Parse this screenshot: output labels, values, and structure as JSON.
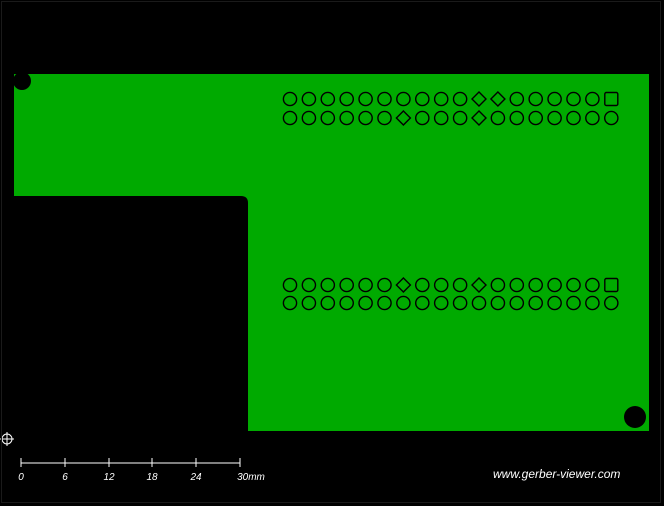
{
  "viewer": {
    "watermark": "www.gerber-viewer.com",
    "background_color": "#000000",
    "copper_color": "#00aa00",
    "hole_color": "#000000",
    "cursor_icon": "origin-crosshair-icon"
  },
  "scale_bar": {
    "ticks": [
      "0",
      "6",
      "12",
      "18",
      "24",
      "30mm"
    ]
  },
  "connectors": [
    {
      "name": "top-header",
      "rows": 2,
      "cols": 18,
      "pin1_shape": "square",
      "pin1_row": 0,
      "diamond_pins": [
        [
          0,
          10
        ],
        [
          0,
          11
        ],
        [
          1,
          6
        ],
        [
          1,
          10
        ]
      ]
    },
    {
      "name": "bottom-header",
      "rows": 2,
      "cols": 18,
      "pin1_shape": "square",
      "pin1_row": 0,
      "diamond_pins": [
        [
          0,
          6
        ],
        [
          0,
          10
        ]
      ]
    }
  ],
  "mounting_holes": [
    "top-left-hole",
    "bottom-right-hole"
  ]
}
